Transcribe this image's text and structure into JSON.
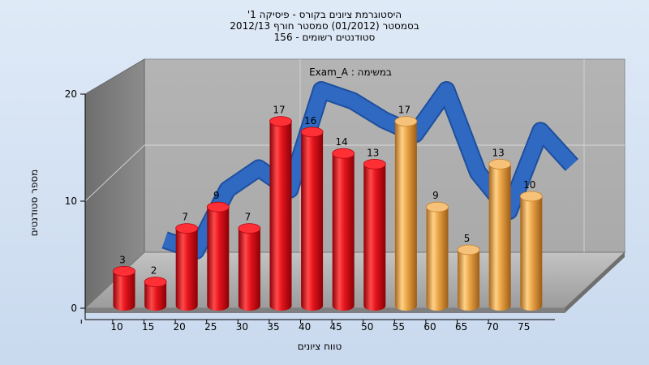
{
  "chart_data": {
    "type": "bar",
    "title_lines": [
      "היסטוגרמת ציונים בקורס - פיסיקה 1'",
      "בסמסטר  (01/2012)  סמסטר חורף  2012/13",
      "סטודנטים רשומים - 156"
    ],
    "annotation": "Exam_A : במשימה",
    "xlabel": "טווח ציונים",
    "ylabel": "מספר סטודנטים",
    "ylim": [
      0,
      20
    ],
    "y_ticks": [
      "0",
      "10",
      "20"
    ],
    "x_ticks": [
      "10",
      "15",
      "20",
      "25",
      "30",
      "35",
      "40",
      "45",
      "50",
      "55",
      "60",
      "65",
      "70",
      "75"
    ],
    "categories": [
      "10-15",
      "15-20",
      "20-25",
      "25-30",
      "30-35",
      "35-40",
      "40-45",
      "45-50",
      "50-55",
      "55-60",
      "60-65",
      "65-70",
      "70-75",
      "75-80"
    ],
    "values": [
      3,
      2,
      7,
      9,
      7,
      17,
      16,
      14,
      13,
      17,
      9,
      5,
      13,
      10
    ],
    "bar_labels": [
      "3",
      "2",
      "7",
      "9",
      "7",
      "17",
      "16",
      "14",
      "13",
      "17",
      "9",
      "5",
      "13",
      "10"
    ],
    "bar_colors": [
      "#d9131b",
      "#d9131b",
      "#d9131b",
      "#d9131b",
      "#d9131b",
      "#d9131b",
      "#d9131b",
      "#d9131b",
      "#d9131b",
      "#e9a445",
      "#e9a445",
      "#e9a445",
      "#e9a445",
      "#e9a445"
    ],
    "trend_x": [
      17.5,
      22.5,
      27.5,
      32.5,
      37.5,
      42.5,
      47.5,
      52.5,
      57.5,
      62.5,
      67.5,
      72.5,
      77.5,
      82.5
    ],
    "trend_y": [
      3.5,
      2.5,
      8.2,
      10.2,
      8.2,
      17.5,
      16.5,
      14.7,
      13.4,
      17.5,
      9.8,
      6.2,
      13.7,
      10.5
    ],
    "trend_color": "#2f69c1"
  }
}
